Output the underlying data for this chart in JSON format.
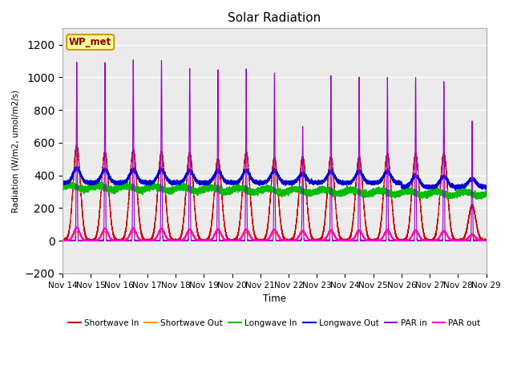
{
  "title": "Solar Radiation",
  "ylabel": "Radiation (W/m2, umol/m2/s)",
  "xlabel": "Time",
  "ylim": [
    -200,
    1300
  ],
  "yticks": [
    -200,
    0,
    200,
    400,
    600,
    800,
    1000,
    1200
  ],
  "tick_labels": [
    "Nov 14",
    "Nov 15",
    "Nov 16",
    "Nov 17",
    "Nov 18",
    "Nov 19",
    "Nov 20",
    "Nov 21",
    "Nov 22",
    "Nov 23",
    "Nov 24",
    "Nov 25",
    "Nov 26",
    "Nov 27",
    "Nov 28",
    "Nov 29"
  ],
  "colors": {
    "shortwave_in": "#cc0000",
    "shortwave_out": "#ff9900",
    "longwave_in": "#00bb00",
    "longwave_out": "#0000cc",
    "par_in": "#9900cc",
    "par_out": "#ff00cc"
  },
  "legend_label": "WP_met",
  "legend_box_color": "#ffff99",
  "legend_box_edge": "#cc9900",
  "plot_bg_color": "#ebebeb"
}
